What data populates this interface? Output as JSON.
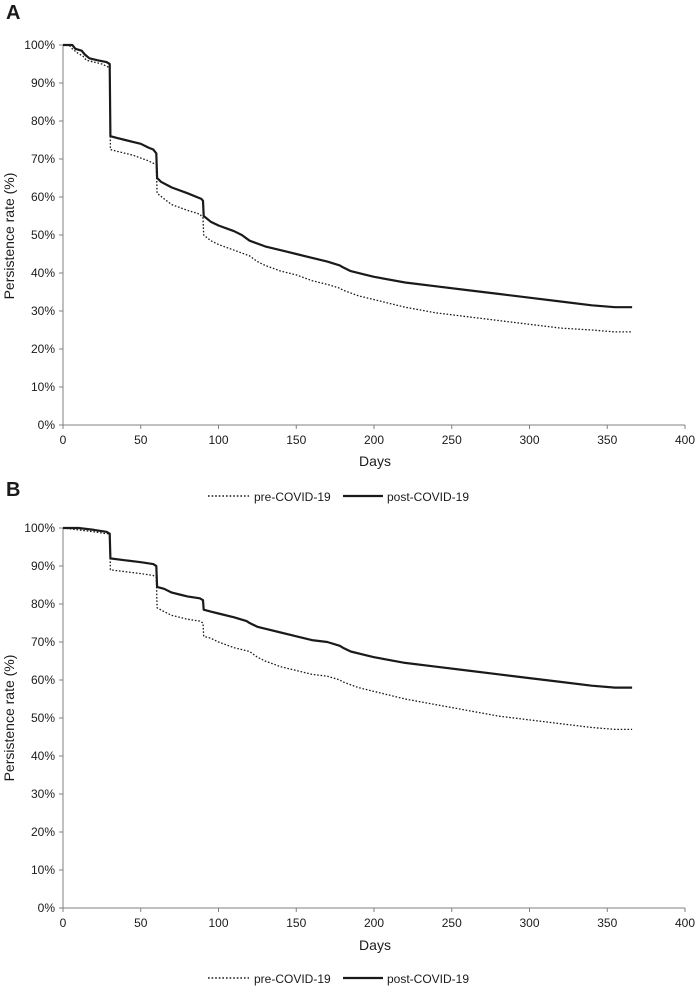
{
  "chart_data": [
    {
      "panel": "A",
      "type": "line",
      "title": "",
      "xlabel": "Days",
      "ylabel": "Persistence rate (%)",
      "xlim": [
        0,
        400
      ],
      "ylim": [
        0,
        100
      ],
      "x_ticks": [
        "0",
        "50",
        "100",
        "150",
        "200",
        "250",
        "300",
        "350",
        "400"
      ],
      "y_ticks": [
        "0%",
        "10%",
        "20%",
        "30%",
        "40%",
        "50%",
        "60%",
        "70%",
        "80%",
        "90%",
        "100%"
      ],
      "grid": false,
      "legend": [
        "pre-COVID-19",
        "post-COVID-19"
      ],
      "series": [
        {
          "name": "pre-COVID-19",
          "style": "dotted",
          "points": [
            [
              0,
              100
            ],
            [
              4,
              100
            ],
            [
              6,
              99
            ],
            [
              9,
              98
            ],
            [
              13,
              97
            ],
            [
              15,
              96
            ],
            [
              20,
              95.5
            ],
            [
              25,
              95
            ],
            [
              30,
              94
            ],
            [
              30.5,
              72.5
            ],
            [
              35,
              72
            ],
            [
              45,
              71
            ],
            [
              55,
              69.5
            ],
            [
              60,
              68.5
            ],
            [
              60.5,
              61
            ],
            [
              65,
              59.5
            ],
            [
              70,
              58
            ],
            [
              80,
              56.5
            ],
            [
              88,
              55.5
            ],
            [
              90,
              54.5
            ],
            [
              90.5,
              50
            ],
            [
              95,
              48.5
            ],
            [
              100,
              47.5
            ],
            [
              110,
              46
            ],
            [
              120,
              44.5
            ],
            [
              125,
              43
            ],
            [
              130,
              42
            ],
            [
              140,
              40.5
            ],
            [
              150,
              39.5
            ],
            [
              160,
              38
            ],
            [
              170,
              37
            ],
            [
              178,
              36
            ],
            [
              180,
              35.5
            ],
            [
              190,
              34
            ],
            [
              200,
              33
            ],
            [
              220,
              31
            ],
            [
              240,
              29.5
            ],
            [
              260,
              28.5
            ],
            [
              280,
              27.5
            ],
            [
              300,
              26.5
            ],
            [
              320,
              25.5
            ],
            [
              340,
              25
            ],
            [
              355,
              24.5
            ],
            [
              366,
              24.5
            ]
          ]
        },
        {
          "name": "post-COVID-19",
          "style": "solid",
          "points": [
            [
              0,
              100
            ],
            [
              6,
              100
            ],
            [
              8,
              99
            ],
            [
              12,
              98.5
            ],
            [
              14,
              97.5
            ],
            [
              17,
              96.5
            ],
            [
              22,
              96
            ],
            [
              28,
              95.5
            ],
            [
              30,
              95
            ],
            [
              30.5,
              76
            ],
            [
              35,
              75.5
            ],
            [
              40,
              75
            ],
            [
              45,
              74.5
            ],
            [
              50,
              74
            ],
            [
              55,
              73
            ],
            [
              58,
              72.5
            ],
            [
              60,
              71.5
            ],
            [
              60.5,
              65
            ],
            [
              63,
              64
            ],
            [
              70,
              62.5
            ],
            [
              80,
              61
            ],
            [
              86,
              60
            ],
            [
              89,
              59.5
            ],
            [
              90,
              59
            ],
            [
              90.5,
              55
            ],
            [
              95,
              53.5
            ],
            [
              100,
              52.5
            ],
            [
              110,
              51
            ],
            [
              115,
              50
            ],
            [
              120,
              48.5
            ],
            [
              130,
              47
            ],
            [
              140,
              46
            ],
            [
              150,
              45
            ],
            [
              160,
              44
            ],
            [
              170,
              43
            ],
            [
              178,
              42
            ],
            [
              180,
              41.5
            ],
            [
              185,
              40.5
            ],
            [
              195,
              39.5
            ],
            [
              200,
              39
            ],
            [
              220,
              37.5
            ],
            [
              240,
              36.5
            ],
            [
              260,
              35.5
            ],
            [
              280,
              34.5
            ],
            [
              300,
              33.5
            ],
            [
              320,
              32.5
            ],
            [
              340,
              31.5
            ],
            [
              355,
              31
            ],
            [
              366,
              31
            ]
          ]
        }
      ]
    },
    {
      "panel": "B",
      "type": "line",
      "title": "",
      "xlabel": "Days",
      "ylabel": "Persistence rate (%)",
      "xlim": [
        0,
        400
      ],
      "ylim": [
        0,
        100
      ],
      "x_ticks": [
        "0",
        "50",
        "100",
        "150",
        "200",
        "250",
        "300",
        "350",
        "400"
      ],
      "y_ticks": [
        "0%",
        "10%",
        "20%",
        "30%",
        "40%",
        "50%",
        "60%",
        "70%",
        "80%",
        "90%",
        "100%"
      ],
      "grid": false,
      "legend": [
        "pre-COVID-19",
        "post-COVID-19"
      ],
      "series": [
        {
          "name": "pre-COVID-19",
          "style": "dotted",
          "points": [
            [
              0,
              100
            ],
            [
              10,
              99.5
            ],
            [
              20,
              99
            ],
            [
              28,
              98.5
            ],
            [
              30,
              98.5
            ],
            [
              30.5,
              89
            ],
            [
              40,
              88.5
            ],
            [
              50,
              88
            ],
            [
              58,
              87.5
            ],
            [
              60,
              87
            ],
            [
              60.5,
              79
            ],
            [
              65,
              78
            ],
            [
              70,
              77
            ],
            [
              75,
              76.5
            ],
            [
              80,
              76
            ],
            [
              88,
              75.5
            ],
            [
              90,
              75
            ],
            [
              90.5,
              71.5
            ],
            [
              95,
              71
            ],
            [
              100,
              70
            ],
            [
              110,
              68.5
            ],
            [
              120,
              67.5
            ],
            [
              125,
              66
            ],
            [
              130,
              65
            ],
            [
              140,
              63.5
            ],
            [
              150,
              62.5
            ],
            [
              160,
              61.5
            ],
            [
              170,
              61
            ],
            [
              178,
              60
            ],
            [
              180,
              59.5
            ],
            [
              190,
              58
            ],
            [
              200,
              57
            ],
            [
              220,
              55
            ],
            [
              240,
              53.5
            ],
            [
              260,
              52
            ],
            [
              280,
              50.5
            ],
            [
              300,
              49.5
            ],
            [
              320,
              48.5
            ],
            [
              340,
              47.5
            ],
            [
              355,
              47
            ],
            [
              366,
              47
            ]
          ]
        },
        {
          "name": "post-COVID-19",
          "style": "solid",
          "points": [
            [
              0,
              100
            ],
            [
              10,
              100
            ],
            [
              20,
              99.5
            ],
            [
              28,
              99
            ],
            [
              30,
              98.5
            ],
            [
              30.5,
              92
            ],
            [
              40,
              91.5
            ],
            [
              50,
              91
            ],
            [
              58,
              90.5
            ],
            [
              60,
              90
            ],
            [
              60.5,
              84.5
            ],
            [
              65,
              84
            ],
            [
              70,
              83
            ],
            [
              75,
              82.5
            ],
            [
              80,
              82
            ],
            [
              88,
              81.5
            ],
            [
              90,
              81
            ],
            [
              90.5,
              78.5
            ],
            [
              95,
              78
            ],
            [
              100,
              77.5
            ],
            [
              110,
              76.5
            ],
            [
              118,
              75.5
            ],
            [
              120,
              75
            ],
            [
              125,
              74
            ],
            [
              130,
              73.5
            ],
            [
              140,
              72.5
            ],
            [
              150,
              71.5
            ],
            [
              160,
              70.5
            ],
            [
              170,
              70
            ],
            [
              178,
              69
            ],
            [
              180,
              68.5
            ],
            [
              185,
              67.5
            ],
            [
              195,
              66.5
            ],
            [
              200,
              66
            ],
            [
              220,
              64.5
            ],
            [
              240,
              63.5
            ],
            [
              260,
              62.5
            ],
            [
              280,
              61.5
            ],
            [
              300,
              60.5
            ],
            [
              320,
              59.5
            ],
            [
              340,
              58.5
            ],
            [
              355,
              58
            ],
            [
              366,
              58
            ]
          ]
        }
      ]
    }
  ]
}
